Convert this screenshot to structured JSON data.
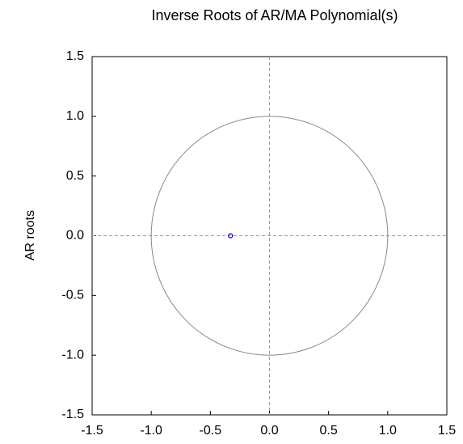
{
  "chart_data": {
    "type": "scatter",
    "title": "Inverse Roots of AR/MA Polynomial(s)",
    "y_label": "AR roots",
    "series": [
      {
        "name": "AR roots",
        "color": "#0000cc",
        "x": [
          -0.33
        ],
        "values": [
          0
        ]
      }
    ],
    "xlim": [
      -1.5,
      1.5
    ],
    "ylim": [
      -1.5,
      1.5
    ],
    "xticks": [
      -1.5,
      {
        "value": -1,
        "label": "-1.0"
      },
      -0.5,
      {
        "value": 0,
        "label": "0.0"
      },
      0.5,
      {
        "value": 1,
        "label": "1.0"
      },
      1.5
    ],
    "yticks": [
      -1.5,
      {
        "value": -1,
        "label": "-1.0"
      },
      -0.5,
      {
        "value": 0,
        "label": "0.0"
      },
      0.5,
      {
        "value": 1,
        "label": "1.0"
      },
      1.5
    ],
    "unit_circle": true,
    "zero_lines": true,
    "circle_color": "#888888"
  }
}
